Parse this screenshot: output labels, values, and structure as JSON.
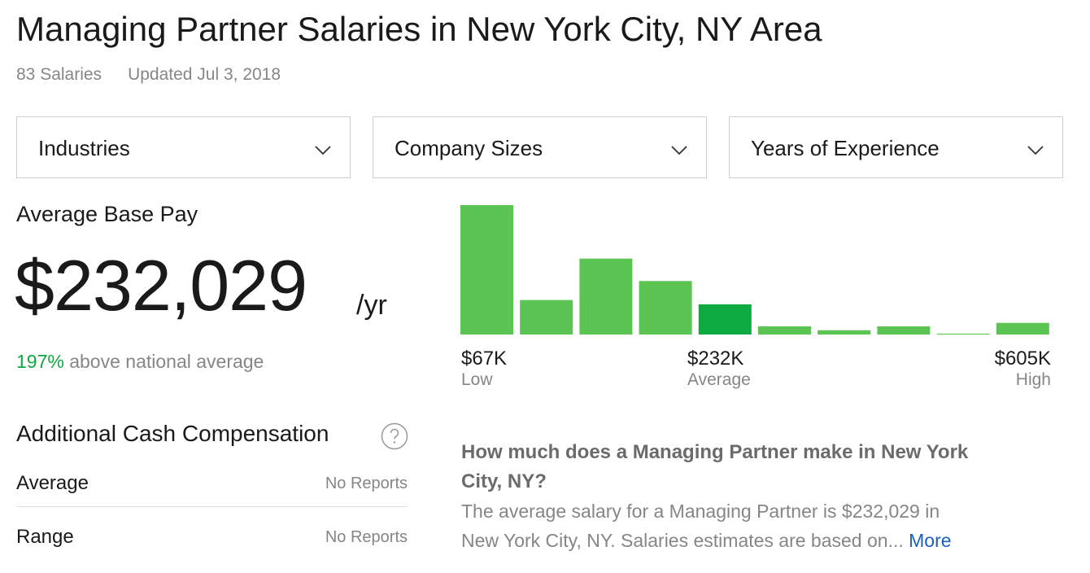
{
  "header": {
    "title": "Managing Partner Salaries in New York City, NY Area",
    "salary_count": "83 Salaries",
    "updated": "Updated Jul 3, 2018"
  },
  "filters": [
    "Industries",
    "Company Sizes",
    "Years of Experience"
  ],
  "average_base_pay": {
    "label": "Average Base Pay",
    "amount": "$232,029",
    "unit": "/yr",
    "comparison_percent": "197%",
    "comparison_text": "above national average"
  },
  "additional_cash": {
    "title": "Additional Cash Compensation",
    "rows": [
      [
        "Average",
        "No Reports"
      ],
      [
        "Range",
        "No Reports"
      ]
    ]
  },
  "chart_data": {
    "type": "bar",
    "values": [
      30,
      8,
      17.6,
      12.4,
      7,
      1.9,
      1,
      1.9,
      0.2,
      2.7
    ],
    "color": "#5cc452",
    "highlight_color": "#0caa41",
    "highlight_index": 4,
    "markers": [
      {
        "value": "$67K",
        "label": "Low"
      },
      {
        "value": "$232K",
        "label": "Average"
      },
      {
        "value": "$605K",
        "label": "High"
      }
    ]
  },
  "faq": {
    "question_lines": [
      "How much does a Managing Partner make in New York",
      "City, NY?"
    ],
    "answer_lines": [
      "The average salary for a Managing Partner is $232,029 in",
      "New York City, NY. Salaries estimates are based on..."
    ],
    "link": "More"
  }
}
